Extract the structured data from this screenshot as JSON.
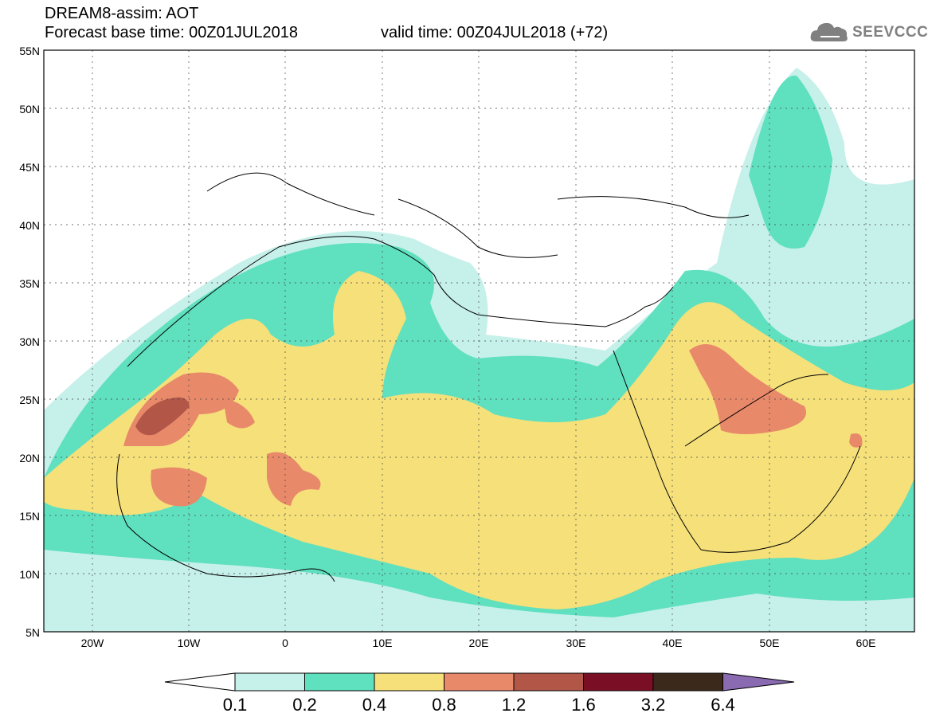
{
  "title": {
    "line1": "DREAM8-assim: AOT",
    "forecast_base": "Forecast base time: 00Z01JUL2018",
    "valid_time": "valid time: 00Z04JUL2018 (+72)"
  },
  "logo": {
    "text": "SEEVCCC",
    "icon": "cloud-icon"
  },
  "map": {
    "lat_labels": [
      "55N",
      "50N",
      "45N",
      "40N",
      "35N",
      "30N",
      "25N",
      "20N",
      "15N",
      "10N",
      "5N"
    ],
    "lon_labels": [
      "20W",
      "10W",
      "0",
      "10E",
      "20E",
      "30E",
      "40E",
      "50E",
      "60E"
    ],
    "colors": {
      "c01": "#c6f0ea",
      "c02": "#5fe0bf",
      "c04": "#f5e07a",
      "c08": "#e8896a",
      "c12": "#b25648",
      "c16": "#7a0e24",
      "c32": "#3b2a1c",
      "c64": "#8a6ab0"
    }
  },
  "colorbar": {
    "labels": [
      "0.1",
      "0.2",
      "0.4",
      "0.8",
      "1.2",
      "1.6",
      "3.2",
      "6.4"
    ],
    "colors": [
      "#c6f0ea",
      "#5fe0bf",
      "#f5e07a",
      "#e8896a",
      "#b25648",
      "#7a0e24",
      "#3b2a1c"
    ],
    "under_color": "#ffffff",
    "over_color": "#8a6ab0"
  }
}
